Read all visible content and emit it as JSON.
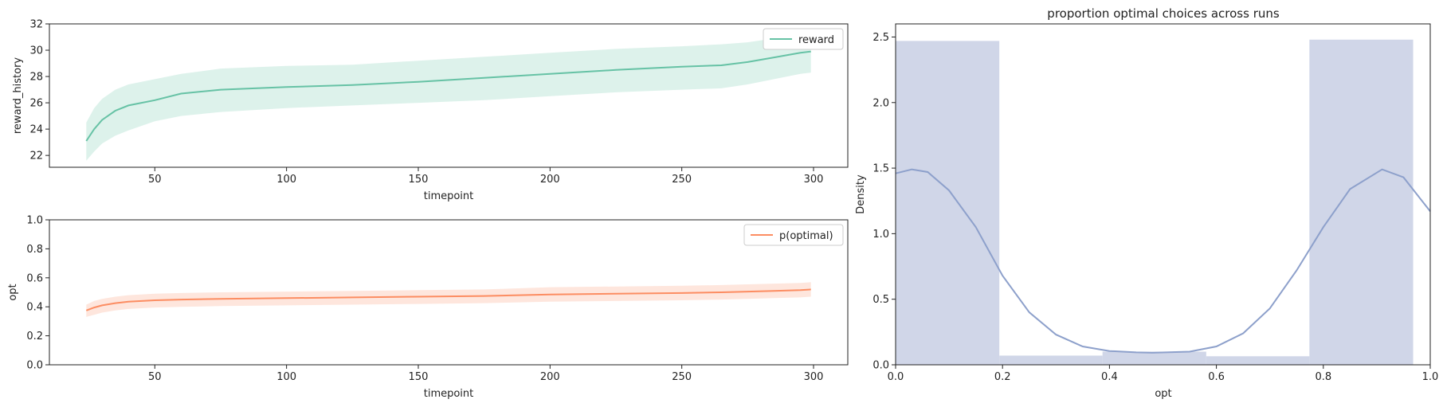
{
  "chart_data": [
    {
      "type": "line",
      "title": "",
      "xlabel": "timepoint",
      "ylabel": "reward_history",
      "xlim": [
        10,
        313
      ],
      "ylim": [
        21.1,
        32.0
      ],
      "xticks": [
        50,
        100,
        150,
        200,
        250,
        300
      ],
      "yticks": [
        22,
        24,
        26,
        28,
        30,
        32
      ],
      "legend": "upper right",
      "series": [
        {
          "name": "reward",
          "color": "#66c2a5",
          "x": [
            24,
            27,
            30,
            35,
            40,
            50,
            60,
            75,
            100,
            125,
            150,
            175,
            200,
            225,
            250,
            265,
            275,
            285,
            295,
            299
          ],
          "y": [
            23.1,
            24.0,
            24.7,
            25.4,
            25.8,
            26.2,
            26.7,
            27.0,
            27.2,
            27.35,
            27.6,
            27.9,
            28.2,
            28.5,
            28.75,
            28.85,
            29.1,
            29.45,
            29.8,
            29.9
          ],
          "lower": [
            21.6,
            22.3,
            22.9,
            23.5,
            23.9,
            24.6,
            25.0,
            25.3,
            25.6,
            25.8,
            26.0,
            26.2,
            26.5,
            26.8,
            27.0,
            27.1,
            27.4,
            27.8,
            28.2,
            28.3
          ],
          "upper": [
            24.5,
            25.6,
            26.3,
            27.0,
            27.4,
            27.8,
            28.2,
            28.6,
            28.8,
            28.9,
            29.2,
            29.5,
            29.8,
            30.1,
            30.3,
            30.45,
            30.6,
            30.9,
            31.1,
            31.2
          ]
        }
      ]
    },
    {
      "type": "line",
      "title": "",
      "xlabel": "timepoint",
      "ylabel": "opt",
      "xlim": [
        10,
        313
      ],
      "ylim": [
        0.0,
        1.0
      ],
      "xticks": [
        50,
        100,
        150,
        200,
        250,
        300
      ],
      "yticks": [
        0.0,
        0.2,
        0.4,
        0.6,
        0.8,
        1.0
      ],
      "legend": "upper right",
      "series": [
        {
          "name": "p(optimal)",
          "color": "#fc8d62",
          "x": [
            24,
            27,
            30,
            35,
            40,
            50,
            60,
            75,
            100,
            125,
            150,
            175,
            200,
            225,
            250,
            265,
            275,
            285,
            295,
            299
          ],
          "y": [
            0.375,
            0.395,
            0.41,
            0.425,
            0.435,
            0.445,
            0.45,
            0.455,
            0.46,
            0.465,
            0.47,
            0.475,
            0.485,
            0.49,
            0.495,
            0.5,
            0.505,
            0.51,
            0.515,
            0.52
          ],
          "lower": [
            0.33,
            0.345,
            0.36,
            0.375,
            0.385,
            0.395,
            0.4,
            0.405,
            0.41,
            0.415,
            0.42,
            0.425,
            0.435,
            0.44,
            0.445,
            0.45,
            0.455,
            0.46,
            0.465,
            0.47
          ],
          "upper": [
            0.415,
            0.44,
            0.455,
            0.47,
            0.48,
            0.49,
            0.495,
            0.5,
            0.505,
            0.51,
            0.515,
            0.52,
            0.535,
            0.54,
            0.545,
            0.55,
            0.555,
            0.56,
            0.565,
            0.57
          ]
        }
      ]
    },
    {
      "type": "histogram",
      "title": "proportion optimal choices across runs",
      "xlabel": "opt",
      "ylabel": "Density",
      "xlim": [
        0.0,
        1.0
      ],
      "ylim": [
        0.0,
        2.6
      ],
      "xticks": [
        0.0,
        0.2,
        0.4,
        0.6,
        0.8,
        1.0
      ],
      "yticks": [
        0.0,
        0.5,
        1.0,
        1.5,
        2.0,
        2.5
      ],
      "bar_color": "#d0d6e8",
      "line_color": "#8da0cb",
      "bins": [
        {
          "x0": 0.0,
          "x1": 0.194,
          "density": 2.47
        },
        {
          "x0": 0.194,
          "x1": 0.387,
          "density": 0.07
        },
        {
          "x0": 0.387,
          "x1": 0.581,
          "density": 0.1
        },
        {
          "x0": 0.581,
          "x1": 0.774,
          "density": 0.065
        },
        {
          "x0": 0.774,
          "x1": 0.968,
          "density": 2.48
        }
      ],
      "kde": {
        "x": [
          0.0,
          0.03,
          0.06,
          0.1,
          0.15,
          0.2,
          0.25,
          0.3,
          0.35,
          0.4,
          0.45,
          0.48,
          0.55,
          0.6,
          0.65,
          0.7,
          0.75,
          0.8,
          0.85,
          0.91,
          0.95,
          1.0
        ],
        "y": [
          1.46,
          1.49,
          1.47,
          1.33,
          1.05,
          0.68,
          0.4,
          0.23,
          0.14,
          0.105,
          0.095,
          0.092,
          0.1,
          0.14,
          0.24,
          0.43,
          0.72,
          1.05,
          1.34,
          1.49,
          1.43,
          1.17
        ]
      }
    }
  ]
}
